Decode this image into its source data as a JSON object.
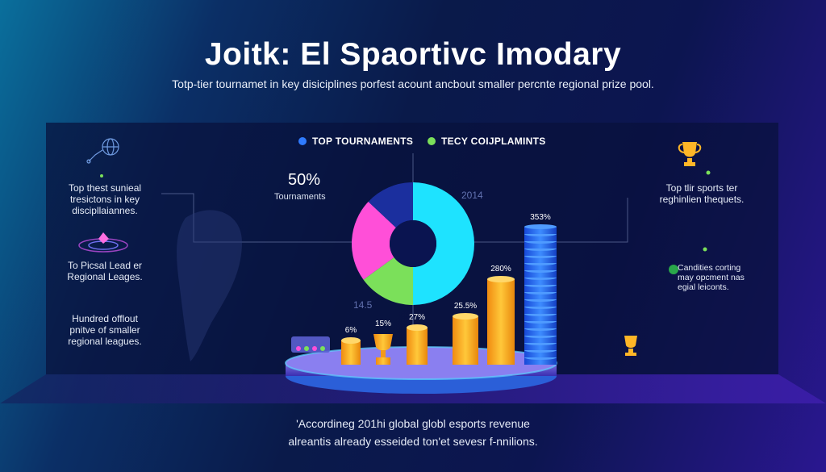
{
  "header": {
    "title": "Joitk: El Spaortivc Imodary",
    "subtitle": "Totp-tier tournamet in key disiciplines porfest acount ancbout smaller percnte regional prize pool."
  },
  "left_notes": [
    "Top thest sunieal\ntresictons in key\ndiscipllaiannes.",
    "To Picsal Lead er\nRegional Leages.",
    "Hundred offlout\npnitve of smaller\nregional leagues."
  ],
  "right_notes": [
    "Top tlir sports ter\nreghinlien thequets.",
    "Candities corting\nmay opcment nas\negial leiconts."
  ],
  "highlight": {
    "value": "50%",
    "label": "Tournaments"
  },
  "faint_labels": {
    "year": "2014",
    "value": "14.5"
  },
  "footer": {
    "line1": "'Accordineg 201hi global globl esports revenue",
    "line2": "alreantis already esseided ton'et sevesr f-nnilions."
  },
  "colors": {
    "accent_blue": "#2f7bff",
    "accent_green": "#7be05a",
    "bar_orange": "#ffb627",
    "donut_cyan": "#1ee3ff",
    "donut_navy": "#1b2f9e",
    "donut_pink": "#ff4fd8",
    "donut_green": "#7be05a"
  },
  "icons": [
    "network-globe-icon",
    "gem-icon",
    "trophy-icon",
    "leaf-icon"
  ],
  "chart_data": [
    {
      "type": "pie",
      "legend": [
        "TOP TOURNAMENTS",
        "TECY COIJPLAMINTS"
      ],
      "slices": [
        {
          "value": 50,
          "color": "#1ee3ff"
        },
        {
          "value": 15,
          "color": "#7be05a"
        },
        {
          "value": 22,
          "color": "#ff4fd8"
        },
        {
          "value": 13,
          "color": "#1b2f9e"
        }
      ]
    },
    {
      "type": "bar",
      "categories": [
        "",
        "",
        "",
        "",
        "",
        ""
      ],
      "labels": [
        "6%",
        "15%",
        "27%",
        "25.5%",
        "280%",
        "353%"
      ],
      "values": [
        6,
        15,
        27,
        25.5,
        280,
        353
      ],
      "render_heights": [
        30,
        38,
        46,
        60,
        106,
        170
      ],
      "styles": [
        "cylinder",
        "trophy",
        "cylinder",
        "cylinder",
        "cylinder",
        "stack"
      ]
    }
  ]
}
